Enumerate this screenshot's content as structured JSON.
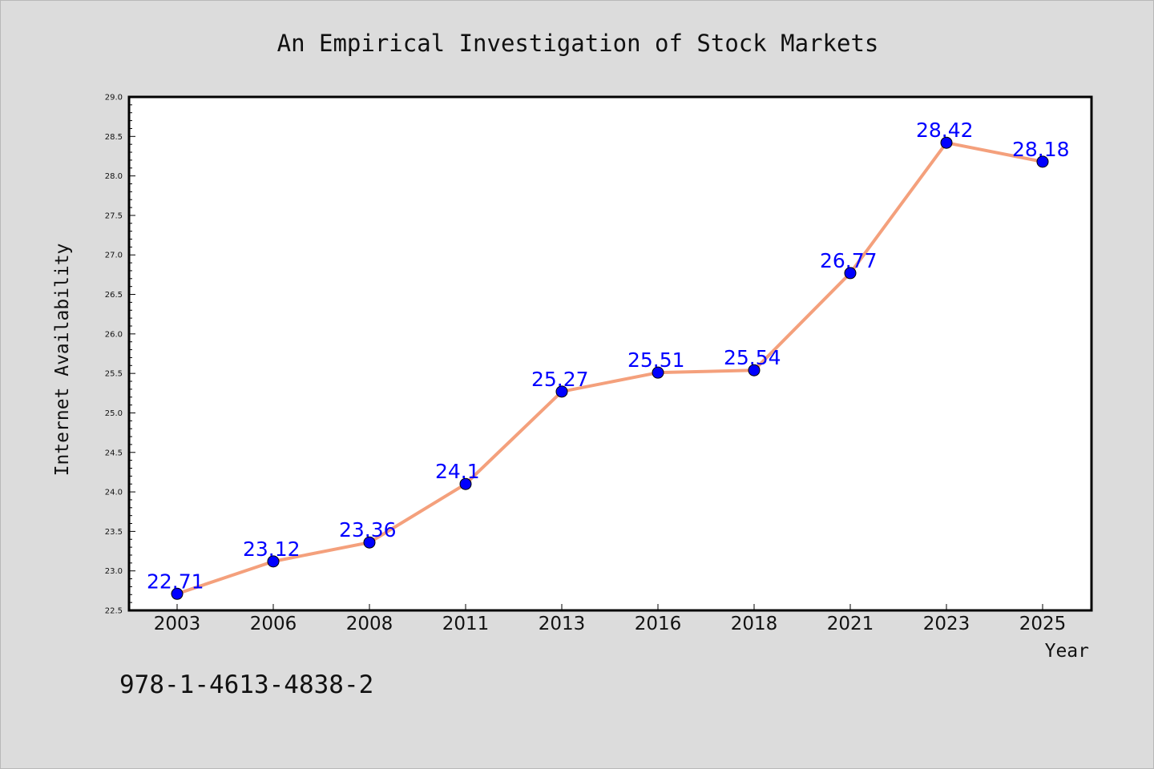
{
  "chart_data": {
    "type": "line",
    "title": "An Empirical Investigation of Stock Markets",
    "xlabel": "Year",
    "ylabel": "Internet Availability",
    "categories": [
      "2003",
      "2006",
      "2008",
      "2011",
      "2013",
      "2016",
      "2018",
      "2021",
      "2023",
      "2025"
    ],
    "series": [
      {
        "values": [
          22.71,
          23.12,
          23.36,
          24.1,
          25.27,
          25.51,
          25.54,
          26.77,
          28.42,
          28.18
        ],
        "labels": [
          "22.71",
          "23.12",
          "23.36",
          "24.1",
          "25.27",
          "25.51",
          "25.54",
          "26.77",
          "28.42",
          "28.18"
        ],
        "line_color": "#f4a07c",
        "marker_color": "#0000ff"
      }
    ],
    "ylim": [
      22.5,
      29.0
    ],
    "yticks": [
      "22.5",
      "23.0",
      "23.5",
      "24.0",
      "24.5",
      "25.0",
      "25.5",
      "26.0",
      "26.5",
      "27.0",
      "27.5",
      "28.0",
      "28.5",
      "29.0"
    ],
    "grid": false,
    "data_label_color": "#0000ff"
  },
  "annotation": "978-1-4613-4838-2"
}
